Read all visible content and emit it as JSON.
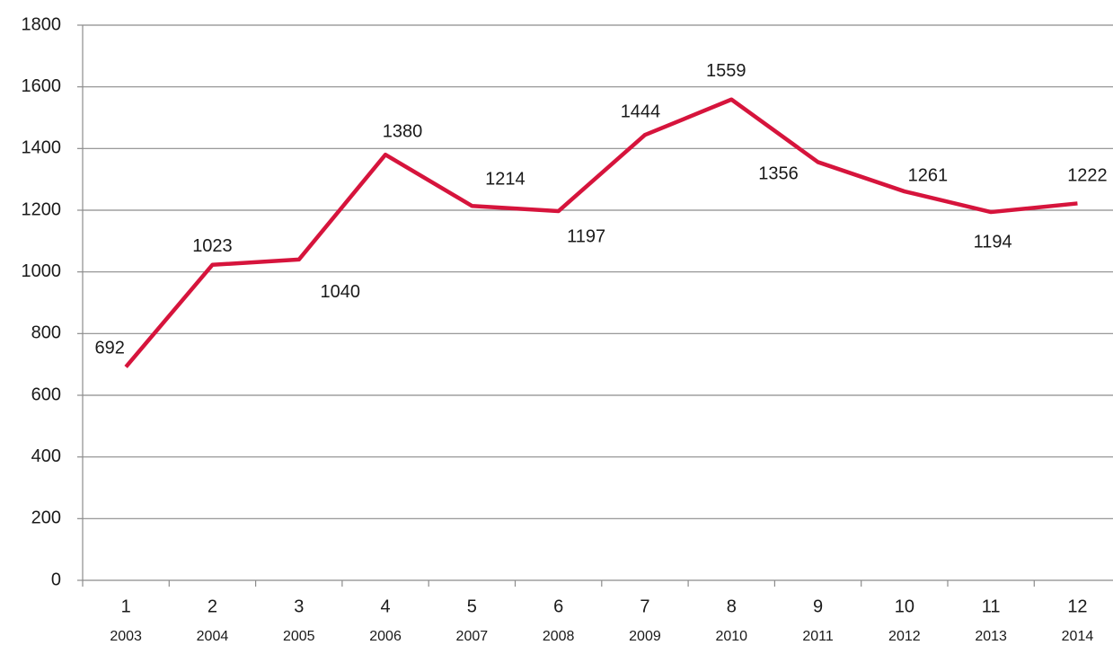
{
  "chart_data": {
    "type": "line",
    "categories": [
      "1",
      "2",
      "3",
      "4",
      "5",
      "6",
      "7",
      "8",
      "9",
      "10",
      "11",
      "12"
    ],
    "subcategories": [
      "2003",
      "2004",
      "2005",
      "2006",
      "2007",
      "2008",
      "2009",
      "2010",
      "2011",
      "2012",
      "2013",
      "2014"
    ],
    "series": [
      {
        "color": "#d6143c",
        "values": [
          692,
          1023,
          1040,
          1380,
          1214,
          1197,
          1444,
          1559,
          1356,
          1261,
          1194,
          1222
        ]
      }
    ],
    "ylim": [
      0,
      1800
    ],
    "yticks": [
      0,
      200,
      400,
      600,
      800,
      1000,
      1200,
      1400,
      1600,
      1800
    ],
    "grid": true
  }
}
